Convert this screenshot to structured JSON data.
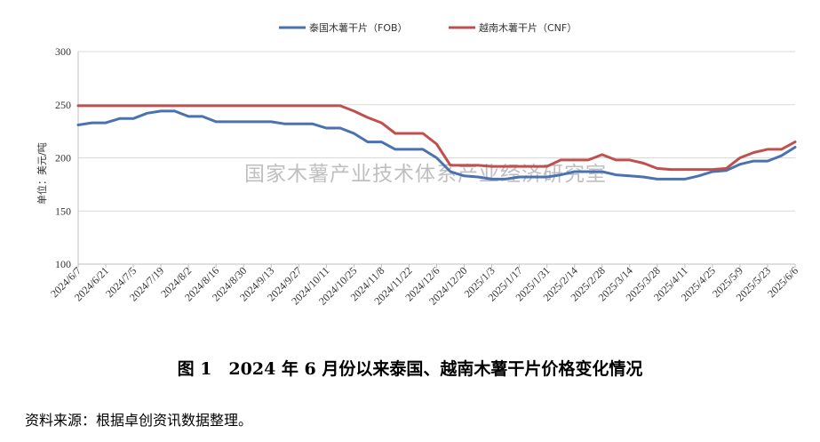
{
  "chart_data": {
    "type": "line",
    "ylabel": "单位：美元/吨",
    "ylim": [
      100,
      300
    ],
    "yticks": [
      100,
      150,
      200,
      250,
      300
    ],
    "grid": "horizontal",
    "legend_position": "top-center",
    "x": [
      "2024/6/7",
      "2024/6/14",
      "2024/6/21",
      "2024/6/28",
      "2024/7/5",
      "2024/7/12",
      "2024/7/19",
      "2024/7/26",
      "2024/8/2",
      "2024/8/9",
      "2024/8/16",
      "2024/8/23",
      "2024/8/30",
      "2024/9/6",
      "2024/9/13",
      "2024/9/20",
      "2024/9/27",
      "2024/10/4",
      "2024/10/11",
      "2024/10/18",
      "2024/10/25",
      "2024/11/1",
      "2024/11/8",
      "2024/11/15",
      "2024/11/22",
      "2024/11/29",
      "2024/12/6",
      "2024/12/13",
      "2024/12/20",
      "2024/12/27",
      "2025/1/3",
      "2025/1/10",
      "2025/1/17",
      "2025/1/24",
      "2025/1/31",
      "2025/2/7",
      "2025/2/14",
      "2025/2/21",
      "2025/2/28",
      "2025/3/7",
      "2025/3/14",
      "2025/3/21",
      "2025/3/28",
      "2025/4/4",
      "2025/4/11",
      "2025/4/18",
      "2025/4/25",
      "2025/5/2",
      "2025/5/9",
      "2025/5/16",
      "2025/5/23",
      "2025/5/30",
      "2025/6/6"
    ],
    "xtick_labels": [
      "2024/6/7",
      "2024/6/21",
      "2024/7/5",
      "2024/7/19",
      "2024/8/2",
      "2024/8/16",
      "2024/8/30",
      "2024/9/13",
      "2024/9/27",
      "2024/10/11",
      "2024/10/25",
      "2024/11/8",
      "2024/11/22",
      "2024/12/6",
      "2024/12/20",
      "2025/1/3",
      "2025/1/17",
      "2025/1/31",
      "2025/2/14",
      "2025/2/28",
      "2025/3/14",
      "2025/3/28",
      "2025/4/11",
      "2025/4/25",
      "2025/5/9",
      "2025/5/23",
      "2025/6/6"
    ],
    "series": [
      {
        "name": "泰国木薯干片（FOB）",
        "color": "#4a72b0",
        "values": [
          231,
          233,
          233,
          237,
          237,
          242,
          244,
          244,
          239,
          239,
          234,
          234,
          234,
          234,
          234,
          232,
          232,
          232,
          228,
          228,
          223,
          215,
          215,
          208,
          208,
          208,
          200,
          187,
          183,
          182,
          180,
          180,
          182,
          182,
          182,
          184,
          187,
          187,
          187,
          184,
          183,
          182,
          180,
          180,
          180,
          183,
          187,
          188,
          194,
          197,
          197,
          202,
          210
        ]
      },
      {
        "name": "越南木薯干片（CNF）",
        "color": "#c0504d",
        "values": [
          249,
          249,
          249,
          249,
          249,
          249,
          249,
          249,
          249,
          249,
          249,
          249,
          249,
          249,
          249,
          249,
          249,
          249,
          249,
          249,
          244,
          238,
          233,
          223,
          223,
          223,
          213,
          193,
          193,
          193,
          192,
          192,
          192,
          192,
          192,
          198,
          198,
          198,
          203,
          198,
          198,
          195,
          190,
          189,
          189,
          189,
          189,
          190,
          200,
          205,
          208,
          208,
          215
        ]
      }
    ]
  },
  "watermark": "国家木薯产业技术体系产业经济研究室",
  "caption": "图 1　2024 年 6 月份以来泰国、越南木薯干片价格变化情况",
  "source": "资料来源：根据卓创资讯数据整理。"
}
